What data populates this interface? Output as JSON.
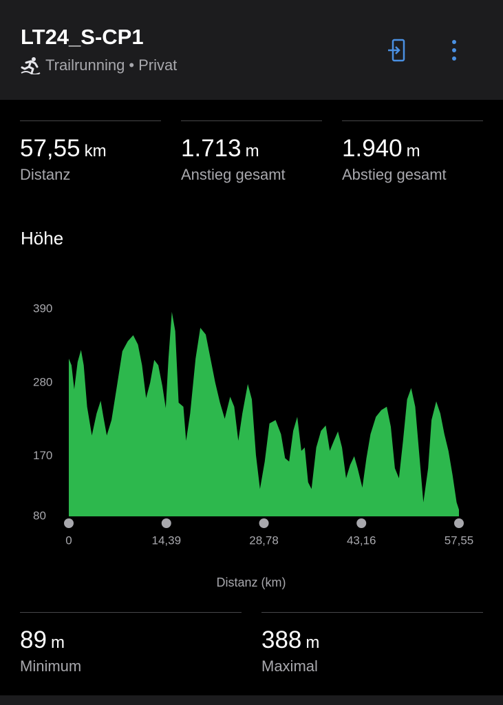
{
  "header": {
    "title": "LT24_S-CP1",
    "activity": "Trailrunning",
    "separator": "•",
    "visibility": "Privat"
  },
  "stats": [
    {
      "value": "57,55",
      "unit": "km",
      "label": "Distanz"
    },
    {
      "value": "1.713",
      "unit": "m",
      "label": "Anstieg gesamt"
    },
    {
      "value": "1.940",
      "unit": "m",
      "label": "Abstieg gesamt"
    }
  ],
  "chart_data": {
    "type": "area",
    "title": "Höhe",
    "x_label": "Distanz (km)",
    "color": "#2db84d",
    "x": [
      0,
      0.4,
      0.8,
      1.3,
      1.8,
      2.2,
      2.7,
      3.4,
      4.1,
      4.7,
      5.1,
      5.6,
      6.3,
      7.1,
      7.9,
      8.7,
      9.5,
      10.2,
      10.8,
      11.4,
      12.0,
      12.6,
      13.2,
      13.8,
      14.3,
      14.7,
      15.2,
      15.7,
      16.2,
      16.9,
      17.3,
      17.9,
      18.7,
      19.4,
      20.2,
      20.9,
      21.6,
      22.3,
      23.0,
      23.8,
      24.4,
      25.0,
      25.6,
      26.4,
      27.0,
      27.6,
      28.2,
      28.9,
      29.6,
      30.5,
      31.3,
      31.9,
      32.5,
      33.1,
      33.7,
      34.3,
      34.8,
      35.3,
      35.8,
      36.5,
      37.2,
      37.9,
      38.5,
      39.1,
      39.7,
      40.3,
      40.9,
      41.5,
      42.1,
      42.6,
      43.3,
      43.9,
      44.5,
      45.3,
      46.1,
      46.9,
      47.5,
      48.1,
      48.7,
      49.3,
      49.9,
      50.5,
      51.1,
      51.7,
      52.3,
      53.0,
      53.5,
      54.2,
      54.8,
      55.4,
      56.0,
      56.6,
      57.2,
      57.55
    ],
    "values": [
      316,
      306,
      270,
      311,
      329,
      306,
      244,
      201,
      234,
      253,
      229,
      201,
      224,
      275,
      327,
      342,
      351,
      337,
      306,
      257,
      280,
      314,
      306,
      275,
      242,
      316,
      386,
      357,
      250,
      244,
      193,
      234,
      316,
      362,
      352,
      316,
      280,
      250,
      226,
      259,
      244,
      193,
      234,
      278,
      255,
      172,
      121,
      162,
      219,
      224,
      203,
      167,
      162,
      208,
      229,
      178,
      183,
      131,
      121,
      183,
      208,
      216,
      178,
      193,
      207,
      183,
      137,
      157,
      170,
      152,
      123,
      167,
      203,
      229,
      239,
      244,
      214,
      152,
      137,
      193,
      255,
      272,
      244,
      172,
      101,
      152,
      224,
      252,
      234,
      203,
      178,
      142,
      101,
      90
    ],
    "xlim": [
      0,
      57.55
    ],
    "xticks": [
      0,
      {
        "value": 14.39,
        "label": "14,39"
      },
      {
        "value": 28.78,
        "label": "28,78"
      },
      {
        "value": 43.16,
        "label": "43,16"
      },
      {
        "value": 57.55,
        "label": "57,55"
      }
    ],
    "ylim": [
      80,
      390
    ],
    "yticks": [
      80,
      170,
      280,
      390
    ]
  },
  "summary": [
    {
      "value": "89",
      "unit": "m",
      "label": "Minimum"
    },
    {
      "value": "388",
      "unit": "m",
      "label": "Maximal"
    }
  ]
}
